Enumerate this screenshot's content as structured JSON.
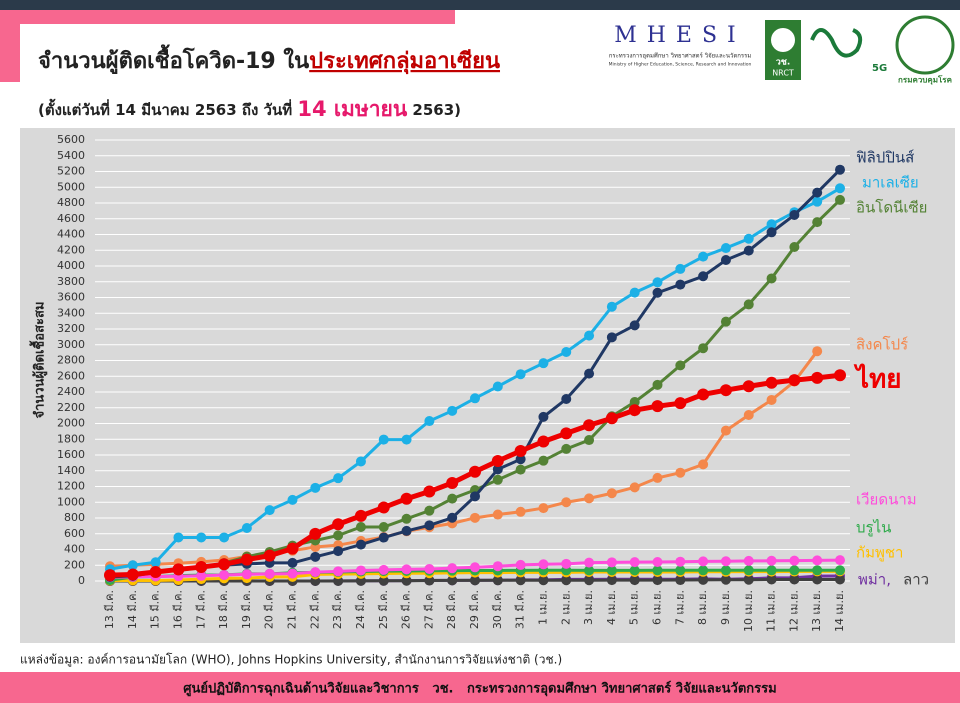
{
  "header": {
    "logo_mhesi": "MHESI",
    "logo_mhesi_caption": "กระทรวงการอุดมศึกษา วิทยาศาสตร์ วิจัยและนวัตกรรม",
    "logo_mhesi_caption_en": "Ministry of Higher Education, Science, Research and Innovation",
    "logo_nrct": "NRCT",
    "logo_nrct_th": "วช.",
    "logo_5g": "5G",
    "logo_ddc": "กรมควบคุมโรค"
  },
  "chart_data": {
    "type": "line",
    "title": "จำนวนผู้ติดเชื้อโควิด-19 ใน",
    "title_highlight": "ประเทศกลุ่มอาเซียน",
    "subtitle_start": "(ตั้งแต่วันที่ 14 มีนาคม 2563 ถึง วันที่",
    "subtitle_highlight": "14 เมษายน",
    "subtitle_end": "2563)",
    "y_label": "จำนวนผู้ติดเชื้อสะสม",
    "categories": [
      "13 มี.ค.",
      "14 มี.ค.",
      "15 มี.ค.",
      "16 มี.ค.",
      "17 มี.ค.",
      "18 มี.ค.",
      "19 มี.ค.",
      "20 มี.ค.",
      "21 มี.ค.",
      "22 มี.ค.",
      "23 มี.ค.",
      "24 มี.ค.",
      "25 มี.ค.",
      "26 มี.ค.",
      "27 มี.ค.",
      "28 มี.ค.",
      "29 มี.ค.",
      "30 มี.ค.",
      "31 มี.ค.",
      "1 เม.ย.",
      "2 เม.ย.",
      "3 เม.ย.",
      "4 เม.ย.",
      "5 เม.ย.",
      "6 เม.ย.",
      "7 เม.ย.",
      "8 เม.ย.",
      "9 เม.ย.",
      "10 เม.ย.",
      "11 เม.ย.",
      "12 เม.ย.",
      "13 เม.ย.",
      "14 เม.ย."
    ],
    "ylim": [
      0,
      5600
    ],
    "yticks": [
      0,
      200,
      400,
      600,
      800,
      1000,
      1200,
      1400,
      1600,
      1800,
      2000,
      2200,
      2400,
      2600,
      2800,
      3000,
      3200,
      3400,
      3600,
      3800,
      4000,
      4200,
      4400,
      4600,
      4800,
      5000,
      5200,
      5400,
      5600
    ],
    "grid": true,
    "series": [
      {
        "name": "พม่า,",
        "color": "#7030a0",
        "values": [
          0,
          0,
          0,
          0,
          0,
          0,
          0,
          0,
          0,
          0,
          2,
          3,
          3,
          5,
          8,
          8,
          10,
          10,
          14,
          15,
          20,
          21,
          22,
          22,
          22,
          22,
          27,
          22,
          28,
          39,
          41,
          62,
          63
        ]
      },
      {
        "name": "ลาว",
        "color": "#404040",
        "values": [
          0,
          0,
          0,
          0,
          0,
          0,
          0,
          0,
          0,
          0,
          0,
          2,
          3,
          3,
          6,
          8,
          8,
          9,
          10,
          10,
          10,
          10,
          11,
          11,
          11,
          12,
          15,
          16,
          16,
          19,
          19,
          19,
          19
        ]
      },
      {
        "name": "กัมพูชา",
        "color": "#ffc000",
        "values": [
          5,
          7,
          7,
          12,
          24,
          33,
          37,
          51,
          53,
          84,
          87,
          91,
          96,
          98,
          99,
          103,
          107,
          107,
          109,
          109,
          110,
          114,
          114,
          114,
          115,
          115,
          117,
          117,
          119,
          119,
          120,
          122,
          122
        ]
      },
      {
        "name": "บรูไน",
        "color": "#2eaa4a",
        "values": [
          11,
          50,
          56,
          68,
          75,
          78,
          91,
          91,
          104,
          109,
          115,
          120,
          126,
          127,
          130,
          131,
          133,
          134,
          135,
          136,
          136,
          135,
          135,
          135,
          136,
          136,
          136,
          136,
          136,
          136,
          136,
          136,
          136
        ]
      },
      {
        "name": "เวียดนาม",
        "color": "#ff4ddb",
        "values": [
          47,
          53,
          57,
          61,
          66,
          76,
          85,
          91,
          94,
          113,
          123,
          134,
          141,
          148,
          153,
          163,
          174,
          188,
          204,
          212,
          218,
          233,
          237,
          240,
          241,
          245,
          249,
          251,
          255,
          257,
          258,
          262,
          265
        ]
      },
      {
        "name": "สิงคโปร์",
        "color": "#f4874b",
        "values": [
          187,
          200,
          212,
          226,
          243,
          266,
          313,
          345,
          385,
          432,
          455,
          509,
          558,
          631,
          683,
          732,
          802,
          844,
          879,
          926,
          1000,
          1049,
          1114,
          1189,
          1309,
          1375,
          1481,
          1910,
          2108,
          2299,
          2532,
          2918,
          null
        ]
      },
      {
        "name": "อินโดนีเซีย",
        "color": "#548235",
        "values": [
          69,
          96,
          117,
          134,
          172,
          227,
          309,
          369,
          450,
          514,
          579,
          686,
          686,
          790,
          893,
          1046,
          1155,
          1285,
          1414,
          1528,
          1677,
          1790,
          2092,
          2273,
          2491,
          2738,
          2956,
          3293,
          3512,
          3842,
          4241,
          4557,
          4839
        ]
      },
      {
        "name": "มาเลเซีย",
        "color": "#1cb0e6",
        "values": [
          150,
          200,
          238,
          553,
          553,
          553,
          673,
          900,
          1030,
          1183,
          1306,
          1518,
          1796,
          1796,
          2031,
          2161,
          2320,
          2470,
          2626,
          2766,
          2908,
          3116,
          3483,
          3662,
          3793,
          3963,
          4119,
          4228,
          4346,
          4530,
          4683,
          4817,
          4987
        ]
      },
      {
        "name": "ฟิลิปปินส์",
        "color": "#203864",
        "values": [
          52,
          64,
          111,
          140,
          187,
          202,
          217,
          230,
          230,
          307,
          380,
          462,
          552,
          636,
          707,
          803,
          1075,
          1418,
          1546,
          2084,
          2311,
          2633,
          3094,
          3246,
          3660,
          3764,
          3870,
          4076,
          4195,
          4428,
          4648,
          4932,
          5223
        ]
      },
      {
        "name": "ไทย",
        "color": "#ee0000",
        "values": [
          75,
          82,
          114,
          147,
          177,
          212,
          272,
          322,
          411,
          599,
          721,
          827,
          934,
          1045,
          1136,
          1245,
          1388,
          1524,
          1651,
          1771,
          1875,
          1978,
          2067,
          2169,
          2220,
          2258,
          2369,
          2423,
          2473,
          2518,
          2551,
          2579,
          2613
        ]
      }
    ]
  },
  "source": "แหล่งข้อมูล: องค์การอนามัยโลก (WHO), Johns Hopkins University, สำนักงานการวิจัยแห่งชาติ (วช.)",
  "footer": "ศูนย์ปฏิบัติการฉุกเฉินด้านวิจัยและวิชาการ   วช.   กระทรวงการอุดมศึกษา วิทยาศาสตร์ วิจัยและนวัตกรรม"
}
